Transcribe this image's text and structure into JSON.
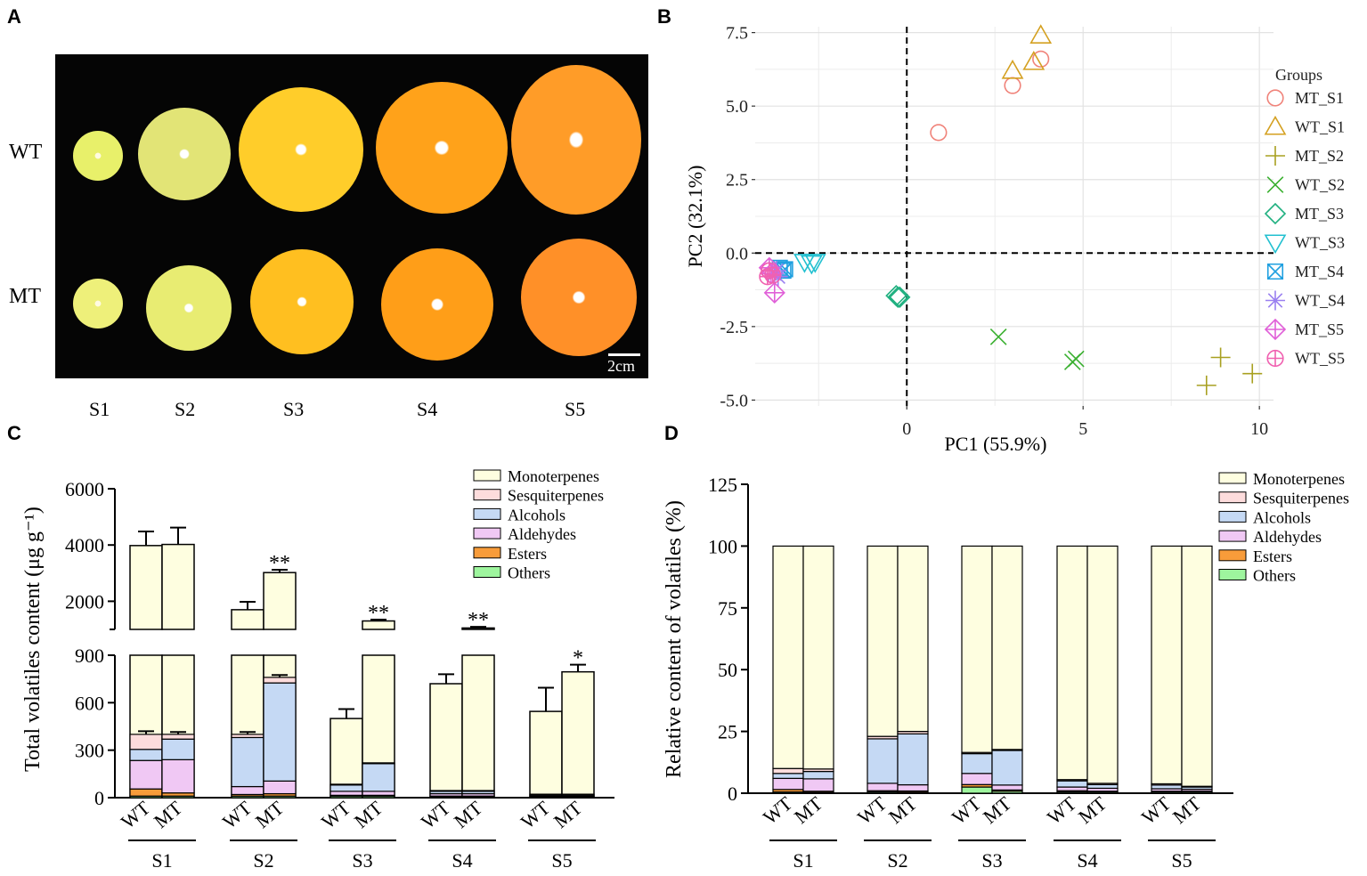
{
  "panels": {
    "a": "A",
    "b": "B",
    "c": "C",
    "d": "D"
  },
  "panel_a": {
    "rows": [
      "WT",
      "MT"
    ],
    "stages": [
      "S1",
      "S2",
      "S3",
      "S4",
      "S5"
    ],
    "scale_label": "2cm"
  },
  "colors": {
    "monoterpenes": "#fefee0",
    "sesquiterpenes": "#fddcdc",
    "alcohols": "#c5d9f4",
    "aldehydes": "#f0c8f4",
    "esters": "#f89c3a",
    "others": "#9ef59e"
  },
  "chart_data": [
    {
      "id": "B",
      "type": "scatter",
      "xlabel": "PC1 (55.9%)",
      "ylabel": "PC2 (32.1%)",
      "xlim": [
        -4.3,
        10.4
      ],
      "ylim": [
        -5.2,
        7.7
      ],
      "xticks": [
        0,
        5,
        10
      ],
      "yticks": [
        7.5,
        5.0,
        2.5,
        0.0,
        -2.5,
        -5.0
      ],
      "ytick_labels": [
        "7.5",
        "5.0",
        "2.5",
        "0.0",
        "-2.5",
        "-5.0"
      ],
      "legend_title": "Groups",
      "legend_position": "right",
      "groups": [
        {
          "name": "MT_S1",
          "color": "#f0837a",
          "shape": "circle",
          "points": [
            [
              0.9,
              4.1
            ],
            [
              3.0,
              5.7
            ],
            [
              3.8,
              6.6
            ]
          ]
        },
        {
          "name": "WT_S1",
          "color": "#d4a020",
          "shape": "triangle",
          "points": [
            [
              3.0,
              6.2
            ],
            [
              3.6,
              6.5
            ],
            [
              3.8,
              7.4
            ]
          ]
        },
        {
          "name": "MT_S2",
          "color": "#a8a020",
          "shape": "plus",
          "points": [
            [
              8.5,
              -4.5
            ],
            [
              8.9,
              -3.55
            ],
            [
              9.8,
              -4.1
            ]
          ]
        },
        {
          "name": "WT_S2",
          "color": "#3ab030",
          "shape": "x",
          "points": [
            [
              2.6,
              -2.85
            ],
            [
              4.7,
              -3.7
            ],
            [
              4.8,
              -3.6
            ]
          ]
        },
        {
          "name": "MT_S3",
          "color": "#20b080",
          "shape": "diamond",
          "points": [
            [
              -0.3,
              -1.45
            ],
            [
              -0.25,
              -1.5
            ],
            [
              -0.2,
              -1.5
            ]
          ]
        },
        {
          "name": "WT_S3",
          "color": "#22c0d0",
          "shape": "triangle-down",
          "points": [
            [
              -2.9,
              -0.3
            ],
            [
              -2.7,
              -0.35
            ],
            [
              -2.6,
              -0.3
            ]
          ]
        },
        {
          "name": "MT_S4",
          "color": "#20a0e0",
          "shape": "boxx",
          "points": [
            [
              -3.6,
              -0.5
            ],
            [
              -3.5,
              -0.6
            ],
            [
              -3.45,
              -0.55
            ]
          ]
        },
        {
          "name": "WT_S4",
          "color": "#9a80f0",
          "shape": "asterisk",
          "points": [
            [
              -3.75,
              -0.7
            ],
            [
              -3.65,
              -0.8
            ],
            [
              -3.7,
              -0.6
            ]
          ]
        },
        {
          "name": "MT_S5",
          "color": "#e060d8",
          "shape": "diamondplus",
          "points": [
            [
              -3.75,
              -1.35
            ],
            [
              -3.9,
              -0.5
            ],
            [
              -3.85,
              -0.7
            ]
          ]
        },
        {
          "name": "WT_S5",
          "color": "#f060b0",
          "shape": "circleplus",
          "points": [
            [
              -3.95,
              -0.8
            ],
            [
              -3.9,
              -0.6
            ],
            [
              -3.8,
              -0.75
            ]
          ]
        }
      ]
    },
    {
      "id": "C",
      "type": "bar",
      "stacked": true,
      "ylabel": "Total volatiles content (μg g⁻¹)",
      "broken_axis": true,
      "lower_ylim": [
        0,
        900
      ],
      "upper_ylim": [
        1000,
        6000
      ],
      "lower_yticks": [
        0,
        300,
        600,
        900
      ],
      "upper_yticks": [
        2000,
        4000,
        6000
      ],
      "stages": [
        "S1",
        "S2",
        "S3",
        "S4",
        "S5"
      ],
      "bar_labels": [
        "WT",
        "MT"
      ],
      "series": [
        "Monoterpenes",
        "Sesquiterpenes",
        "Alcohols",
        "Aldehydes",
        "Esters",
        "Others"
      ],
      "bars": [
        {
          "stage": "S1",
          "group": "WT",
          "total": 3980,
          "error": 500,
          "components": {
            "Others": 10,
            "Esters": 45,
            "Aldehydes": 180,
            "Alcohols": 70,
            "Sesquiterpenes": 95
          },
          "inner_error": 20
        },
        {
          "stage": "S1",
          "group": "MT",
          "total": 4020,
          "error": 600,
          "components": {
            "Others": 10,
            "Esters": 20,
            "Aldehydes": 210,
            "Alcohols": 130,
            "Sesquiterpenes": 30
          },
          "inner_error": 15
        },
        {
          "stage": "S2",
          "group": "WT",
          "total": 1700,
          "error": 280,
          "components": {
            "Others": 10,
            "Esters": 10,
            "Aldehydes": 50,
            "Alcohols": 310,
            "Sesquiterpenes": 20
          },
          "inner_error": 15
        },
        {
          "stage": "S2",
          "group": "MT",
          "total": 3020,
          "error": 100,
          "components": {
            "Others": 10,
            "Esters": 15,
            "Aldehydes": 80,
            "Alcohols": 620,
            "Sesquiterpenes": 35
          },
          "inner_error": 15
        },
        {
          "stage": "S3",
          "group": "WT",
          "total": 500,
          "error": 60,
          "components": {
            "Others": 10,
            "Esters": 5,
            "Aldehydes": 25,
            "Alcohols": 40,
            "Sesquiterpenes": 5
          }
        },
        {
          "stage": "S3",
          "group": "MT",
          "total": 1300,
          "error": 50,
          "components": {
            "Others": 10,
            "Esters": 5,
            "Aldehydes": 25,
            "Alcohols": 175,
            "Sesquiterpenes": 5
          }
        },
        {
          "stage": "S4",
          "group": "WT",
          "total": 720,
          "error": 60,
          "components": {
            "Others": 5,
            "Esters": 5,
            "Aldehydes": 15,
            "Alcohols": 15,
            "Sesquiterpenes": 5
          }
        },
        {
          "stage": "S4",
          "group": "MT",
          "total": 1050,
          "error": 40,
          "components": {
            "Others": 5,
            "Esters": 5,
            "Aldehydes": 15,
            "Alcohols": 15,
            "Sesquiterpenes": 5
          }
        },
        {
          "stage": "S5",
          "group": "WT",
          "total": 545,
          "error": 150,
          "components": {
            "Others": 5,
            "Esters": 3,
            "Aldehydes": 5,
            "Alcohols": 7,
            "Sesquiterpenes": 2
          }
        },
        {
          "stage": "S5",
          "group": "MT",
          "total": 795,
          "error": 45,
          "components": {
            "Others": 5,
            "Esters": 3,
            "Aldehydes": 5,
            "Alcohols": 7,
            "Sesquiterpenes": 2
          }
        }
      ],
      "significance": [
        {
          "stage": "S2",
          "group": "MT",
          "label": "**"
        },
        {
          "stage": "S3",
          "group": "MT",
          "label": "**"
        },
        {
          "stage": "S4",
          "group": "MT",
          "label": "**"
        },
        {
          "stage": "S5",
          "group": "MT",
          "label": "*"
        }
      ]
    },
    {
      "id": "D",
      "type": "bar",
      "stacked": true,
      "ylabel": "Relative content of volatiles (%)",
      "ylim": [
        0,
        125
      ],
      "yticks": [
        0,
        25,
        50,
        75,
        100,
        125
      ],
      "stages": [
        "S1",
        "S2",
        "S3",
        "S4",
        "S5"
      ],
      "bar_labels": [
        "WT",
        "MT"
      ],
      "series": [
        "Monoterpenes",
        "Sesquiterpenes",
        "Alcohols",
        "Aldehydes",
        "Esters",
        "Others"
      ],
      "bars": [
        {
          "stage": "S1",
          "group": "WT",
          "components": {
            "Others": 0.5,
            "Esters": 1,
            "Aldehydes": 4.5,
            "Alcohols": 2,
            "Sesquiterpenes": 2,
            "Monoterpenes": 90
          }
        },
        {
          "stage": "S1",
          "group": "MT",
          "components": {
            "Others": 0.3,
            "Esters": 0.5,
            "Aldehydes": 5,
            "Alcohols": 3,
            "Sesquiterpenes": 1,
            "Monoterpenes": 90.2
          }
        },
        {
          "stage": "S2",
          "group": "WT",
          "components": {
            "Others": 0.5,
            "Esters": 0.5,
            "Aldehydes": 3,
            "Alcohols": 18,
            "Sesquiterpenes": 1,
            "Monoterpenes": 77
          }
        },
        {
          "stage": "S2",
          "group": "MT",
          "components": {
            "Others": 0.4,
            "Esters": 0.5,
            "Aldehydes": 2.5,
            "Alcohols": 20.6,
            "Sesquiterpenes": 1,
            "Monoterpenes": 75
          }
        },
        {
          "stage": "S3",
          "group": "WT",
          "components": {
            "Others": 2.5,
            "Esters": 1,
            "Aldehydes": 4.5,
            "Alcohols": 8,
            "Sesquiterpenes": 0.5,
            "Monoterpenes": 83.5
          }
        },
        {
          "stage": "S3",
          "group": "MT",
          "components": {
            "Others": 0.8,
            "Esters": 0.5,
            "Aldehydes": 2,
            "Alcohols": 14,
            "Sesquiterpenes": 0.4,
            "Monoterpenes": 82.3
          }
        },
        {
          "stage": "S4",
          "group": "WT",
          "components": {
            "Others": 0.5,
            "Esters": 0.5,
            "Aldehydes": 1.5,
            "Alcohols": 2.5,
            "Sesquiterpenes": 0.5,
            "Monoterpenes": 94.5
          }
        },
        {
          "stage": "S4",
          "group": "MT",
          "components": {
            "Others": 0.5,
            "Esters": 0.3,
            "Aldehydes": 1.2,
            "Alcohols": 1.5,
            "Sesquiterpenes": 0.5,
            "Monoterpenes": 96
          }
        },
        {
          "stage": "S5",
          "group": "WT",
          "components": {
            "Others": 0.5,
            "Esters": 0.3,
            "Aldehydes": 1,
            "Alcohols": 1.5,
            "Sesquiterpenes": 0.5,
            "Monoterpenes": 96.2
          }
        },
        {
          "stage": "S5",
          "group": "MT",
          "components": {
            "Others": 0.5,
            "Esters": 0.3,
            "Aldehydes": 0.8,
            "Alcohols": 0.9,
            "Sesquiterpenes": 0.3,
            "Monoterpenes": 97.2
          }
        }
      ]
    }
  ]
}
